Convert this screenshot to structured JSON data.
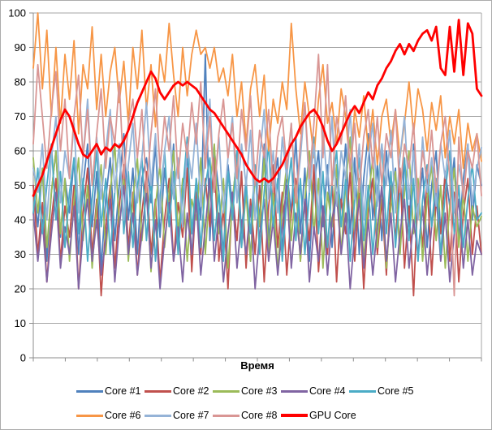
{
  "chart_data": {
    "type": "line",
    "title": "",
    "xlabel": "Время",
    "ylabel": "",
    "ylim": [
      0,
      100
    ],
    "yticks": [
      0,
      10,
      20,
      30,
      40,
      50,
      60,
      70,
      80,
      90,
      100
    ],
    "x_tick_count": 15,
    "grid": true,
    "legend_position": "bottom",
    "legend_rows": [
      5,
      4
    ],
    "grid_color": "#a6a6a6",
    "axis_color": "#8c8c8c",
    "background_color": "#ffffff",
    "series": [
      {
        "name": "Core #1",
        "color": "#4F81BD",
        "width": 1.8,
        "values": [
          50,
          38,
          55,
          28,
          48,
          60,
          35,
          52,
          42,
          58,
          30,
          50,
          62,
          38,
          54,
          26,
          46,
          58,
          34,
          50,
          65,
          40,
          55,
          30,
          52,
          58,
          45,
          62,
          35,
          55,
          42,
          62,
          32,
          50,
          58,
          28,
          52,
          40,
          88,
          34,
          60,
          48,
          30,
          56,
          44,
          60,
          36,
          52,
          28,
          55,
          40,
          62,
          34,
          50,
          58,
          30,
          54,
          42,
          64,
          36,
          55,
          28,
          50,
          60,
          38,
          56,
          32,
          52,
          44,
          62,
          36,
          58,
          30,
          52,
          65,
          40,
          56,
          34,
          60,
          46,
          55,
          30,
          58,
          38,
          62,
          42,
          55,
          32,
          50,
          60,
          36,
          54,
          44,
          58,
          34,
          52,
          62,
          40,
          56,
          50
        ]
      },
      {
        "name": "Core #2",
        "color": "#C0504D",
        "width": 1.8,
        "values": [
          50,
          30,
          45,
          22,
          40,
          52,
          28,
          44,
          35,
          50,
          20,
          42,
          55,
          30,
          46,
          18,
          38,
          50,
          26,
          44,
          56,
          32,
          48,
          24,
          42,
          54,
          30,
          46,
          22,
          40,
          52,
          28,
          45,
          35,
          55,
          25,
          48,
          30,
          52,
          38,
          58,
          28,
          44,
          20,
          48,
          34,
          54,
          26,
          46,
          30,
          50,
          22,
          44,
          56,
          32,
          48,
          24,
          42,
          52,
          28,
          46,
          34,
          56,
          25,
          44,
          30,
          52,
          22,
          46,
          36,
          54,
          28,
          48,
          20,
          42,
          52,
          30,
          46,
          24,
          50,
          34,
          55,
          26,
          44,
          18,
          48,
          32,
          52,
          24,
          46,
          36,
          54,
          28,
          48,
          22,
          42,
          52,
          30,
          44,
          30
        ]
      },
      {
        "name": "Core #3",
        "color": "#9BBB59",
        "width": 1.8,
        "values": [
          58,
          42,
          55,
          32,
          48,
          60,
          36,
          52,
          28,
          46,
          58,
          34,
          50,
          26,
          44,
          56,
          30,
          48,
          62,
          38,
          52,
          28,
          46,
          58,
          34,
          50,
          25,
          44,
          56,
          32,
          48,
          60,
          36,
          52,
          28,
          46,
          40,
          58,
          30,
          50,
          62,
          36,
          52,
          26,
          46,
          58,
          32,
          48,
          28,
          54,
          38,
          58,
          30,
          48,
          25,
          44,
          56,
          34,
          50,
          28,
          46,
          60,
          36,
          52,
          26,
          48,
          38,
          56,
          30,
          50,
          64,
          36,
          52,
          28,
          46,
          58,
          32,
          50,
          26,
          44,
          54,
          30,
          48,
          60,
          36,
          52,
          28,
          46,
          56,
          34,
          50,
          26,
          44,
          55,
          32,
          48,
          28,
          44,
          38,
          41
        ]
      },
      {
        "name": "Core #4",
        "color": "#8064A2",
        "width": 1.8,
        "values": [
          42,
          28,
          40,
          22,
          36,
          48,
          26,
          38,
          30,
          44,
          20,
          36,
          46,
          28,
          40,
          24,
          34,
          46,
          22,
          38,
          50,
          30,
          42,
          24,
          36,
          48,
          26,
          40,
          20,
          34,
          45,
          28,
          38,
          22,
          42,
          30,
          46,
          24,
          38,
          52,
          28,
          42,
          22,
          36,
          48,
          26,
          40,
          30,
          44,
          20,
          36,
          46,
          28,
          40,
          24,
          38,
          50,
          26,
          42,
          30,
          46,
          22,
          38,
          28,
          44,
          24,
          40,
          48,
          30,
          42,
          20,
          36,
          46,
          26,
          40,
          24,
          38,
          50,
          28,
          42,
          22,
          36,
          46,
          26,
          40,
          30,
          44,
          24,
          38,
          48,
          28,
          42,
          22,
          36,
          46,
          26,
          40,
          24,
          34,
          30
        ]
      },
      {
        "name": "Core #5",
        "color": "#4BACC6",
        "width": 1.8,
        "values": [
          42,
          55,
          36,
          50,
          62,
          40,
          54,
          32,
          48,
          58,
          36,
          52,
          28,
          46,
          60,
          38,
          52,
          30,
          48,
          62,
          36,
          54,
          32,
          50,
          58,
          34,
          52,
          28,
          46,
          60,
          38,
          54,
          30,
          48,
          64,
          36,
          52,
          32,
          50,
          58,
          34,
          48,
          28,
          54,
          40,
          60,
          32,
          50,
          36,
          56,
          30,
          48,
          62,
          38,
          52,
          28,
          46,
          58,
          34,
          52,
          30,
          48,
          64,
          36,
          54,
          32,
          50,
          60,
          38,
          52,
          28,
          46,
          58,
          34,
          50,
          30,
          48,
          62,
          36,
          54,
          32,
          48,
          58,
          34,
          52,
          28,
          46,
          56,
          38,
          52,
          30,
          48,
          60,
          36,
          50,
          32,
          46,
          56,
          40,
          42
        ]
      },
      {
        "name": "Core #6",
        "color": "#F79646",
        "width": 1.8,
        "values": [
          84,
          100,
          78,
          95,
          70,
          90,
          68,
          88,
          75,
          92,
          65,
          85,
          78,
          96,
          72,
          88,
          70,
          83,
          90,
          74,
          86,
          68,
          90,
          78,
          95,
          72,
          85,
          67,
          88,
          80,
          97,
          82,
          70,
          90,
          76,
          88,
          95,
          88,
          90,
          84,
          90,
          80,
          84,
          76,
          88,
          70,
          80,
          62,
          78,
          85,
          70,
          82,
          60,
          75,
          68,
          80,
          72,
          97,
          78,
          65,
          80,
          70,
          58,
          75,
          85,
          68,
          74,
          62,
          78,
          70,
          55,
          72,
          64,
          76,
          60,
          72,
          56,
          70,
          75,
          62,
          72,
          58,
          68,
          80,
          65,
          78,
          72,
          60,
          74,
          66,
          76,
          58,
          70,
          62,
          72,
          55,
          68,
          60,
          65,
          57
        ]
      },
      {
        "name": "Core #7",
        "color": "#95B3D7",
        "width": 1.8,
        "values": [
          55,
          48,
          62,
          40,
          58,
          70,
          45,
          60,
          52,
          68,
          42,
          58,
          75,
          50,
          64,
          46,
          60,
          72,
          48,
          62,
          40,
          56,
          68,
          45,
          58,
          74,
          50,
          65,
          42,
          60,
          70,
          46,
          58,
          38,
          62,
          52,
          68,
          44,
          60,
          75,
          48,
          64,
          42,
          58,
          70,
          45,
          62,
          50,
          66,
          40,
          58,
          72,
          46,
          60,
          42,
          64,
          52,
          68,
          45,
          58,
          74,
          48,
          62,
          40,
          66,
          50,
          70,
          44,
          60,
          52,
          72,
          46,
          62,
          40,
          58,
          68,
          44,
          62,
          50,
          66,
          42,
          58,
          70,
          46,
          60,
          40,
          64,
          48,
          58,
          44,
          62,
          52,
          66,
          42,
          56,
          48,
          62,
          45,
          55,
          61
        ]
      },
      {
        "name": "Core #8",
        "color": "#D99694",
        "width": 1.8,
        "values": [
          62,
          85,
          70,
          55,
          72,
          83,
          60,
          75,
          52,
          70,
          82,
          58,
          72,
          50,
          65,
          78,
          55,
          70,
          62,
          80,
          52,
          68,
          75,
          58,
          72,
          48,
          65,
          78,
          55,
          70,
          60,
          76,
          52,
          68,
          58,
          74,
          62,
          80,
          55,
          70,
          48,
          65,
          75,
          58,
          68,
          52,
          72,
          60,
          76,
          50,
          66,
          58,
          72,
          48,
          64,
          70,
          55,
          68,
          45,
          62,
          74,
          52,
          68,
          88,
          58,
          85,
          50,
          70,
          62,
          76,
          54,
          68,
          48,
          64,
          72,
          55,
          70,
          50,
          65,
          58,
          72,
          48,
          62,
          55,
          68,
          45,
          60,
          52,
          66,
          48,
          62,
          70,
          52,
          18,
          64,
          46,
          60,
          55,
          65,
          47
        ]
      },
      {
        "name": "GPU Core",
        "color": "#FF0000",
        "width": 2.8,
        "values": [
          47,
          50,
          53,
          57,
          61,
          65,
          69,
          72,
          70,
          66,
          62,
          59,
          58,
          60,
          62,
          59,
          61,
          60,
          62,
          61,
          63,
          66,
          70,
          74,
          77,
          80,
          83,
          81,
          77,
          75,
          77,
          79,
          80,
          79,
          80,
          79,
          78,
          76,
          74,
          72,
          71,
          69,
          67,
          65,
          63,
          61,
          59,
          56,
          54,
          52,
          51,
          52,
          51,
          52,
          54,
          56,
          59,
          62,
          64,
          67,
          69,
          71,
          72,
          70,
          67,
          63,
          60,
          62,
          65,
          68,
          71,
          73,
          71,
          74,
          77,
          75,
          79,
          81,
          84,
          86,
          89,
          91,
          88,
          91,
          89,
          92,
          94,
          95,
          92,
          96,
          84,
          82,
          96,
          83,
          98,
          82,
          97,
          94,
          78,
          76
        ]
      }
    ]
  }
}
